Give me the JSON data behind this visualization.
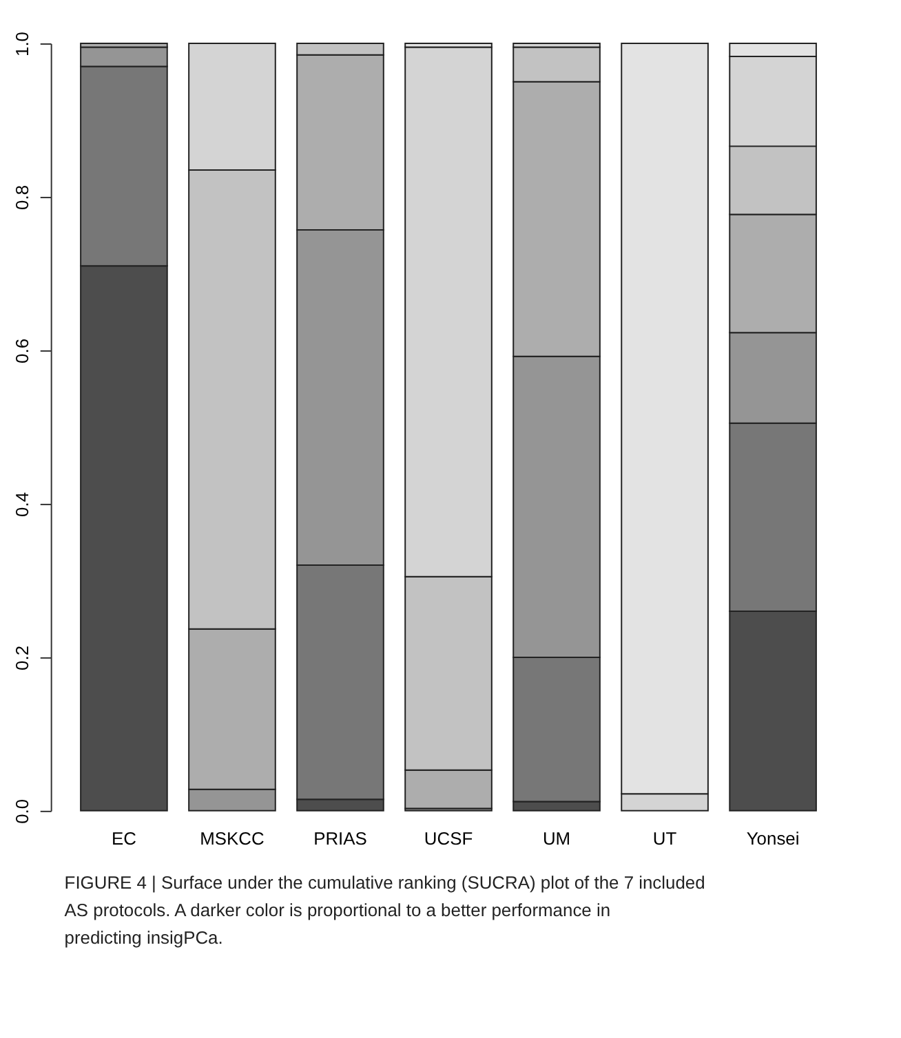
{
  "chart_data": {
    "type": "bar",
    "stacked": true,
    "categories": [
      "EC",
      "MSKCC",
      "PRIAS",
      "UCSF",
      "UM",
      "UT",
      "Yonsei"
    ],
    "series": [
      {
        "color": "#4d4d4d",
        "values": [
          0.71,
          null,
          0.015,
          null,
          0.012,
          null,
          0.26
        ]
      },
      {
        "color": "#777777",
        "values": [
          0.26,
          null,
          0.305,
          null,
          0.188,
          null,
          0.245
        ]
      },
      {
        "color": "#959595",
        "values": [
          0.025,
          0.028,
          0.437,
          0.003,
          0.392,
          null,
          0.118
        ]
      },
      {
        "color": "#adadad",
        "values": [
          0.005,
          0.209,
          0.228,
          0.05,
          0.358,
          null,
          0.154
        ]
      },
      {
        "color": "#c2c2c2",
        "values": [
          null,
          0.598,
          0.015,
          0.252,
          0.045,
          null,
          0.089
        ]
      },
      {
        "color": "#d4d4d4",
        "values": [
          null,
          0.165,
          null,
          0.69,
          0.005,
          0.022,
          0.117
        ]
      },
      {
        "color": "#e3e3e3",
        "values": [
          null,
          null,
          null,
          0.005,
          null,
          0.978,
          0.017
        ]
      }
    ],
    "ylim": [
      0,
      1
    ],
    "yticks": [
      {
        "value": 0,
        "label": "0.0"
      },
      0.2,
      0.4,
      0.6,
      0.8,
      {
        "value": 1,
        "label": "1.0"
      }
    ],
    "grid": false,
    "legend": false,
    "annotations": [
      "FIGURE 4 | Surface under the cumulative ranking (SUCRA) plot of the 7 included AS protocols. A darker color is proportional to a better performance in predicting insigPCa."
    ]
  }
}
